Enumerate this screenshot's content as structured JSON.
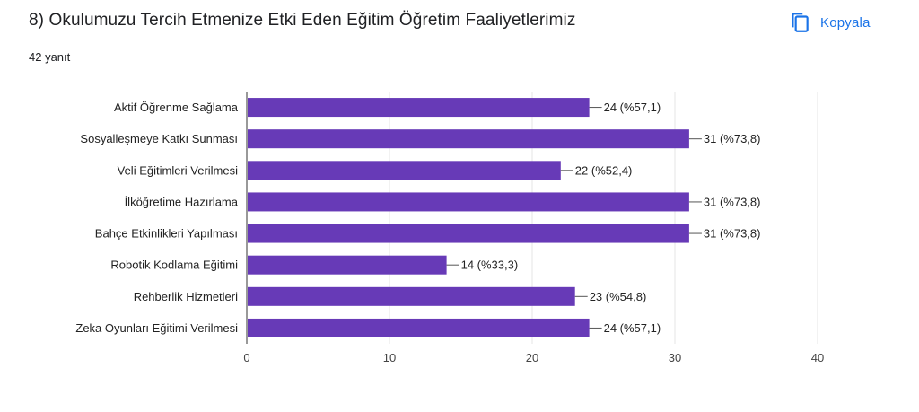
{
  "question": {
    "title": "8) Okulumuzu Tercih Etmenize Etki Eden Eğitim Öğretim Faaliyetlerimiz",
    "response_count": "42 yanıt"
  },
  "toolbar": {
    "copy_label": "Kopyala",
    "copy_icon": "copy-icon"
  },
  "colors": {
    "bar": "#673ab7",
    "accent": "#1a73e8",
    "grid": "#e6e6e6",
    "axis": "#333333"
  },
  "chart_data": {
    "type": "bar",
    "orientation": "horizontal",
    "title": "",
    "xlabel": "",
    "ylabel": "",
    "xlim": [
      0,
      40
    ],
    "ticks": [
      0,
      10,
      20,
      30,
      40
    ],
    "tick_labels": [
      "0",
      "10",
      "20",
      "30",
      "40"
    ],
    "grid": true,
    "categories": [
      "Aktif Öğrenme Sağlama",
      "Sosyalleşmeye Katkı Sunması",
      "Veli Eğitimleri Verilmesi",
      "İlköğretime Hazırlama",
      "Bahçe Etkinlikleri Yapılması",
      "Robotik Kodlama Eğitimi",
      "Rehberlik Hizmetleri",
      "Zeka Oyunları Eğitimi Verilmesi"
    ],
    "values": [
      24,
      31,
      22,
      31,
      31,
      14,
      23,
      24
    ],
    "value_labels": [
      "24 (%57,1)",
      "31 (%73,8)",
      "22 (%52,4)",
      "31 (%73,8)",
      "31 (%73,8)",
      "14 (%33,3)",
      "23 (%54,8)",
      "24 (%57,1)"
    ]
  }
}
